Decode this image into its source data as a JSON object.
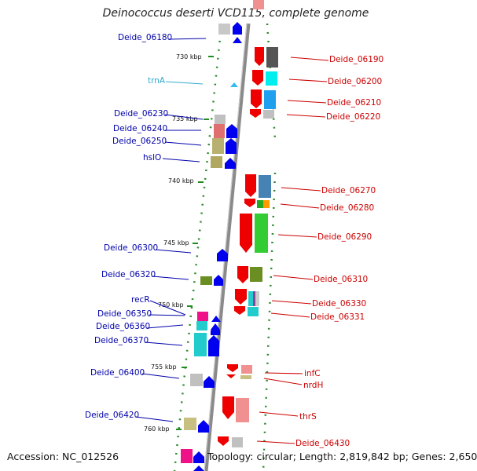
{
  "title": "Deinococcus deserti VCD115, complete genome",
  "accession": "Accession: NC_012526",
  "topology": "Topology: circular; Length: 2,819,842 bp; Genes: 2,650",
  "colors": {
    "plus_strand_label": "#0000aa",
    "minus_strand_label": "#cc0000",
    "rna_label": "#33aacc",
    "scale_tick": "#228b22",
    "backbone": "#888888"
  },
  "scale": [
    "730 kbp",
    "735 kbp",
    "740 kbp",
    "745 kbp",
    "750 kbp",
    "755 kbp",
    "760 kbp"
  ],
  "left_labels": [
    {
      "text": "Deide_06180"
    },
    {
      "text": "trnA"
    },
    {
      "text": "Deide_06230"
    },
    {
      "text": "Deide_06240"
    },
    {
      "text": "Deide_06250"
    },
    {
      "text": "hslO"
    },
    {
      "text": "Deide_06300"
    },
    {
      "text": "Deide_06320"
    },
    {
      "text": "recR"
    },
    {
      "text": "Deide_06350"
    },
    {
      "text": "Deide_06360"
    },
    {
      "text": "Deide_06370"
    },
    {
      "text": "Deide_06400"
    },
    {
      "text": "Deide_06420"
    }
  ],
  "right_labels": [
    {
      "text": "Deide_06190"
    },
    {
      "text": "Deide_06200"
    },
    {
      "text": "Deide_06210"
    },
    {
      "text": "Deide_06220"
    },
    {
      "text": "Deide_06270"
    },
    {
      "text": "Deide_06280"
    },
    {
      "text": "Deide_06290"
    },
    {
      "text": "Deide_06310"
    },
    {
      "text": "Deide_06330"
    },
    {
      "text": "Deide_06331"
    },
    {
      "text": "infC"
    },
    {
      "text": "nrdH"
    },
    {
      "text": "thrS"
    },
    {
      "text": "Deide_06430"
    }
  ]
}
